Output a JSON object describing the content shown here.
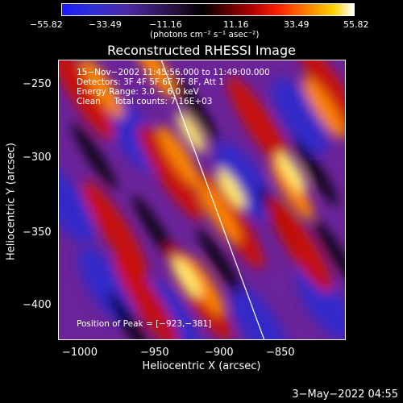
{
  "colorbar": {
    "ticks": [
      "−55.82",
      "−33.49",
      "−11.16",
      "11.16",
      "33.49",
      "55.82"
    ],
    "units": "(photons cm⁻² s⁻¹ asec⁻²)"
  },
  "title": "Reconstructed RHESSI Image",
  "info": {
    "line1": "15−Nov−2002 11:45:56.000 to 11:49:00.000",
    "line2": "Detectors: 3F 4F 5F 6F 7F 8F, Att 1",
    "line3": "Energy Range: 3.0 − 6.0 keV",
    "line4": "Clean     Total counts: 7.16E+03",
    "peak": "Position of Peak = [−923,−381]"
  },
  "axes": {
    "xlabel": "Heliocentric X (arcsec)",
    "ylabel": "Heliocentric Y (arcsec)",
    "xticks": [
      "−1000",
      "−950",
      "−900",
      "−850"
    ],
    "yticks": [
      "−250",
      "−300",
      "−350",
      "−400"
    ]
  },
  "footer": {
    "date": "3−May−2022 04:55"
  }
}
